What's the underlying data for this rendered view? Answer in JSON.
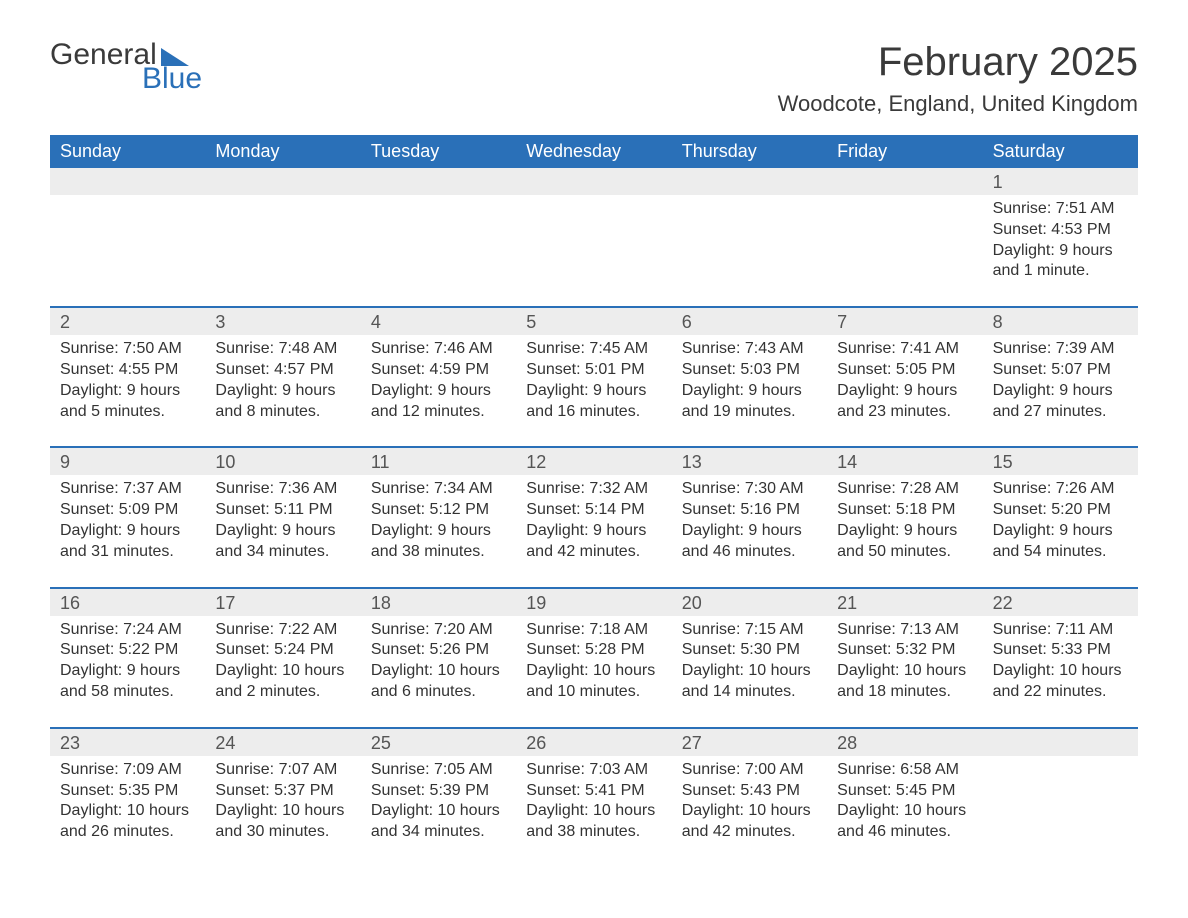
{
  "logo": {
    "word1": "General",
    "word2": "Blue"
  },
  "title": "February 2025",
  "location": "Woodcote, England, United Kingdom",
  "colors": {
    "header_bg": "#2a70b8",
    "header_text": "#ffffff",
    "daynum_bg": "#ededed",
    "divider": "#2a70b8",
    "body_text": "#333333",
    "title_text": "#3a3a3a"
  },
  "day_names": [
    "Sunday",
    "Monday",
    "Tuesday",
    "Wednesday",
    "Thursday",
    "Friday",
    "Saturday"
  ],
  "weeks": [
    [
      null,
      null,
      null,
      null,
      null,
      null,
      {
        "n": "1",
        "sunrise": "7:51 AM",
        "sunset": "4:53 PM",
        "daylight": "9 hours and 1 minute."
      }
    ],
    [
      {
        "n": "2",
        "sunrise": "7:50 AM",
        "sunset": "4:55 PM",
        "daylight": "9 hours and 5 minutes."
      },
      {
        "n": "3",
        "sunrise": "7:48 AM",
        "sunset": "4:57 PM",
        "daylight": "9 hours and 8 minutes."
      },
      {
        "n": "4",
        "sunrise": "7:46 AM",
        "sunset": "4:59 PM",
        "daylight": "9 hours and 12 minutes."
      },
      {
        "n": "5",
        "sunrise": "7:45 AM",
        "sunset": "5:01 PM",
        "daylight": "9 hours and 16 minutes."
      },
      {
        "n": "6",
        "sunrise": "7:43 AM",
        "sunset": "5:03 PM",
        "daylight": "9 hours and 19 minutes."
      },
      {
        "n": "7",
        "sunrise": "7:41 AM",
        "sunset": "5:05 PM",
        "daylight": "9 hours and 23 minutes."
      },
      {
        "n": "8",
        "sunrise": "7:39 AM",
        "sunset": "5:07 PM",
        "daylight": "9 hours and 27 minutes."
      }
    ],
    [
      {
        "n": "9",
        "sunrise": "7:37 AM",
        "sunset": "5:09 PM",
        "daylight": "9 hours and 31 minutes."
      },
      {
        "n": "10",
        "sunrise": "7:36 AM",
        "sunset": "5:11 PM",
        "daylight": "9 hours and 34 minutes."
      },
      {
        "n": "11",
        "sunrise": "7:34 AM",
        "sunset": "5:12 PM",
        "daylight": "9 hours and 38 minutes."
      },
      {
        "n": "12",
        "sunrise": "7:32 AM",
        "sunset": "5:14 PM",
        "daylight": "9 hours and 42 minutes."
      },
      {
        "n": "13",
        "sunrise": "7:30 AM",
        "sunset": "5:16 PM",
        "daylight": "9 hours and 46 minutes."
      },
      {
        "n": "14",
        "sunrise": "7:28 AM",
        "sunset": "5:18 PM",
        "daylight": "9 hours and 50 minutes."
      },
      {
        "n": "15",
        "sunrise": "7:26 AM",
        "sunset": "5:20 PM",
        "daylight": "9 hours and 54 minutes."
      }
    ],
    [
      {
        "n": "16",
        "sunrise": "7:24 AM",
        "sunset": "5:22 PM",
        "daylight": "9 hours and 58 minutes."
      },
      {
        "n": "17",
        "sunrise": "7:22 AM",
        "sunset": "5:24 PM",
        "daylight": "10 hours and 2 minutes."
      },
      {
        "n": "18",
        "sunrise": "7:20 AM",
        "sunset": "5:26 PM",
        "daylight": "10 hours and 6 minutes."
      },
      {
        "n": "19",
        "sunrise": "7:18 AM",
        "sunset": "5:28 PM",
        "daylight": "10 hours and 10 minutes."
      },
      {
        "n": "20",
        "sunrise": "7:15 AM",
        "sunset": "5:30 PM",
        "daylight": "10 hours and 14 minutes."
      },
      {
        "n": "21",
        "sunrise": "7:13 AM",
        "sunset": "5:32 PM",
        "daylight": "10 hours and 18 minutes."
      },
      {
        "n": "22",
        "sunrise": "7:11 AM",
        "sunset": "5:33 PM",
        "daylight": "10 hours and 22 minutes."
      }
    ],
    [
      {
        "n": "23",
        "sunrise": "7:09 AM",
        "sunset": "5:35 PM",
        "daylight": "10 hours and 26 minutes."
      },
      {
        "n": "24",
        "sunrise": "7:07 AM",
        "sunset": "5:37 PM",
        "daylight": "10 hours and 30 minutes."
      },
      {
        "n": "25",
        "sunrise": "7:05 AM",
        "sunset": "5:39 PM",
        "daylight": "10 hours and 34 minutes."
      },
      {
        "n": "26",
        "sunrise": "7:03 AM",
        "sunset": "5:41 PM",
        "daylight": "10 hours and 38 minutes."
      },
      {
        "n": "27",
        "sunrise": "7:00 AM",
        "sunset": "5:43 PM",
        "daylight": "10 hours and 42 minutes."
      },
      {
        "n": "28",
        "sunrise": "6:58 AM",
        "sunset": "5:45 PM",
        "daylight": "10 hours and 46 minutes."
      },
      null
    ]
  ],
  "labels": {
    "sunrise": "Sunrise: ",
    "sunset": "Sunset: ",
    "daylight": "Daylight: "
  }
}
